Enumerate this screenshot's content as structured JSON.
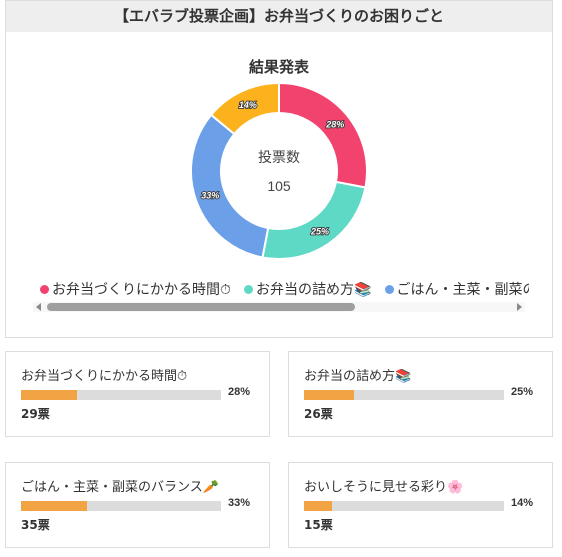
{
  "header": {
    "title": "【エバラブ投票企画】お弁当づくりのお困りごと"
  },
  "results": {
    "heading": "結果発表",
    "total_label": "投票数",
    "total_value": "105"
  },
  "chart_data": {
    "type": "pie",
    "donut": true,
    "legend_position": "bottom",
    "slices": [
      {
        "label": "お弁当づくりにかかる時間⏱",
        "value": 28,
        "value_label": "28%",
        "votes": "29票",
        "color": "#f2436f"
      },
      {
        "label": "お弁当の詰め方📚",
        "value": 25,
        "value_label": "25%",
        "votes": "26票",
        "color": "#5ed9c6"
      },
      {
        "label": "ごはん・主菜・副菜のバランス🥕",
        "value": 33,
        "value_label": "33%",
        "votes": "35票",
        "color": "#6ba0e9"
      },
      {
        "label": "おいしそうに見せる彩り🌸",
        "value": 14,
        "value_label": "14%",
        "votes": "15票",
        "color": "#fbb21d"
      }
    ]
  },
  "theme": {
    "bar_fill": "#f2a444",
    "bar_track": "#dcdcdc",
    "header_bg": "#eeeeee"
  }
}
